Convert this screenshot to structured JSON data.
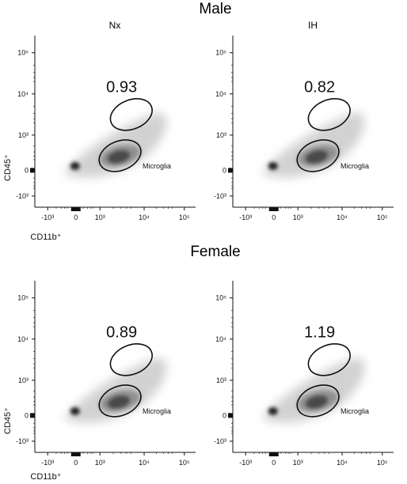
{
  "chart_data": {
    "type": "flow_cytometry_density",
    "sections": [
      {
        "title": "Male",
        "column_titles": [
          "Nx",
          "IH"
        ]
      },
      {
        "title": "Female",
        "column_titles": [
          "",
          ""
        ]
      }
    ],
    "x_axis_label": "CD11b⁺",
    "y_axis_label": "CD45⁺",
    "x_ticks": [
      "-10³",
      "0",
      "10³",
      "10⁴",
      "10⁵"
    ],
    "y_ticks": [
      "10⁵",
      "10⁴",
      "10³",
      "0",
      "-10³"
    ],
    "gate_label": "Microglia",
    "panels": [
      {
        "section": "Male",
        "condition": "Nx",
        "upper_gate_percent": "0.93"
      },
      {
        "section": "Male",
        "condition": "IH",
        "upper_gate_percent": "0.82"
      },
      {
        "section": "Female",
        "condition": "Nx",
        "upper_gate_percent": "0.89"
      },
      {
        "section": "Female",
        "condition": "IH",
        "upper_gate_percent": "1.19"
      }
    ]
  }
}
